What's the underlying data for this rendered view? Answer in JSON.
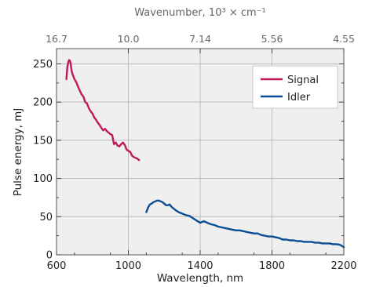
{
  "chart_data": {
    "type": "line",
    "xlabel": "Wavelength, nm",
    "ylabel": "Pulse energy, mJ",
    "top_xlabel": "Wavenumber, 10³ × cm⁻¹",
    "xlim": [
      600,
      2200
    ],
    "ylim": [
      0,
      270
    ],
    "xticks": [
      600,
      1000,
      1400,
      1800,
      2200
    ],
    "yticks": [
      0,
      50,
      100,
      150,
      200,
      250
    ],
    "top_ticks": [
      {
        "label": "16.7",
        "wavelength": 600
      },
      {
        "label": "10.0",
        "wavelength": 1000
      },
      {
        "label": "7.14",
        "wavelength": 1400
      },
      {
        "label": "5.56",
        "wavelength": 1800
      },
      {
        "label": "4.55",
        "wavelength": 2200
      }
    ],
    "grid": true,
    "legend_position": "top-right",
    "series": [
      {
        "name": "Signal",
        "color": "#c0185a",
        "x": [
          655,
          660,
          665,
          670,
          675,
          680,
          685,
          690,
          700,
          710,
          720,
          730,
          740,
          750,
          760,
          770,
          780,
          790,
          800,
          810,
          820,
          830,
          840,
          850,
          860,
          870,
          880,
          890,
          900,
          910,
          920,
          930,
          940,
          950,
          960,
          970,
          980,
          990,
          1000,
          1010,
          1020,
          1030,
          1040,
          1050,
          1060
        ],
        "y": [
          230,
          245,
          252,
          255,
          254,
          248,
          240,
          236,
          230,
          226,
          220,
          215,
          210,
          207,
          200,
          198,
          192,
          188,
          185,
          180,
          177,
          173,
          170,
          166,
          163,
          165,
          162,
          160,
          158,
          157,
          145,
          147,
          143,
          142,
          145,
          147,
          144,
          138,
          136,
          135,
          130,
          128,
          127,
          126,
          124
        ]
      },
      {
        "name": "Idler",
        "color": "#0b4d94",
        "x": [
          1100,
          1110,
          1120,
          1130,
          1140,
          1150,
          1160,
          1170,
          1180,
          1190,
          1200,
          1210,
          1220,
          1230,
          1240,
          1250,
          1260,
          1280,
          1300,
          1320,
          1340,
          1360,
          1380,
          1400,
          1420,
          1440,
          1460,
          1480,
          1500,
          1520,
          1540,
          1560,
          1580,
          1600,
          1620,
          1640,
          1660,
          1680,
          1700,
          1720,
          1740,
          1760,
          1780,
          1800,
          1820,
          1840,
          1860,
          1880,
          1900,
          1920,
          1940,
          1960,
          1980,
          2000,
          2020,
          2040,
          2060,
          2080,
          2100,
          2120,
          2140,
          2160,
          2180,
          2200
        ],
        "y": [
          56,
          62,
          66,
          67,
          69,
          70,
          71,
          71,
          70,
          69,
          67,
          65,
          65,
          66,
          63,
          61,
          59,
          56,
          54,
          52,
          51,
          48,
          45,
          42,
          44,
          42,
          40,
          39,
          37,
          36,
          35,
          34,
          33,
          32,
          32,
          31,
          30,
          29,
          28,
          28,
          26,
          25,
          24,
          24,
          23,
          22,
          20,
          20,
          19,
          19,
          18,
          18,
          17,
          17,
          17,
          16,
          16,
          15,
          15,
          15,
          14,
          14,
          13,
          10
        ]
      }
    ]
  }
}
